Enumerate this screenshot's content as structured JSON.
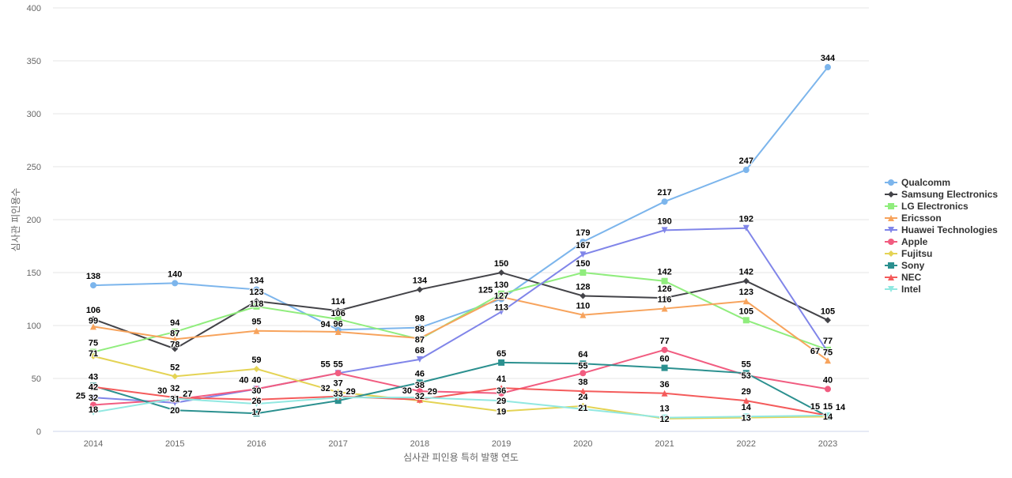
{
  "chart_data": {
    "type": "line",
    "xlabel": "심사관 피인용 특허 발행 연도",
    "ylabel": "심사관 피인용수",
    "ylim": [
      0,
      400
    ],
    "yticks": [
      0,
      50,
      100,
      150,
      200,
      250,
      300,
      350,
      400
    ],
    "categories": [
      "2014",
      "2015",
      "2016",
      "2017",
      "2018",
      "2019",
      "2020",
      "2021",
      "2022",
      "2023"
    ],
    "grid": true,
    "legend": "right",
    "series": [
      {
        "name": "Qualcomm",
        "color": "#7cb5ec",
        "marker": "circle",
        "values": [
          138,
          140,
          134,
          96,
          98,
          125,
          179,
          217,
          247,
          344
        ]
      },
      {
        "name": "Samsung Electronics",
        "color": "#434348",
        "marker": "diamond",
        "values": [
          106,
          78,
          123,
          114,
          134,
          150,
          128,
          126,
          142,
          105
        ]
      },
      {
        "name": "LG Electronics",
        "color": "#90ed7d",
        "marker": "square",
        "values": [
          75,
          94,
          118,
          106,
          87,
          130,
          150,
          142,
          105,
          77
        ]
      },
      {
        "name": "Ericsson",
        "color": "#f7a35c",
        "marker": "triangle",
        "values": [
          99,
          87,
          95,
          94,
          88,
          127,
          110,
          116,
          123,
          67
        ]
      },
      {
        "name": "Huawei Technologies",
        "color": "#8085e9",
        "marker": "triangle-down",
        "values": [
          32,
          27,
          40,
          55,
          68,
          113,
          167,
          190,
          192,
          75
        ]
      },
      {
        "name": "Apple",
        "color": "#f15c80",
        "marker": "circle",
        "values": [
          25,
          30,
          40,
          55,
          38,
          36,
          55,
          77,
          53,
          40
        ]
      },
      {
        "name": "Fujitsu",
        "color": "#e4d354",
        "marker": "diamond",
        "values": [
          71,
          52,
          59,
          37,
          29,
          19,
          24,
          12,
          13,
          14
        ]
      },
      {
        "name": "Sony",
        "color": "#2b908f",
        "marker": "square",
        "values": [
          43,
          20,
          17,
          29,
          46,
          65,
          64,
          60,
          55,
          14
        ]
      },
      {
        "name": "NEC",
        "color": "#f45b5b",
        "marker": "triangle",
        "values": [
          42,
          32,
          30,
          33,
          30,
          41,
          38,
          36,
          29,
          15
        ]
      },
      {
        "name": "Intel",
        "color": "#91e8e1",
        "marker": "triangle-down",
        "values": [
          18,
          31,
          26,
          32,
          32,
          29,
          21,
          13,
          14,
          15
        ]
      }
    ]
  }
}
